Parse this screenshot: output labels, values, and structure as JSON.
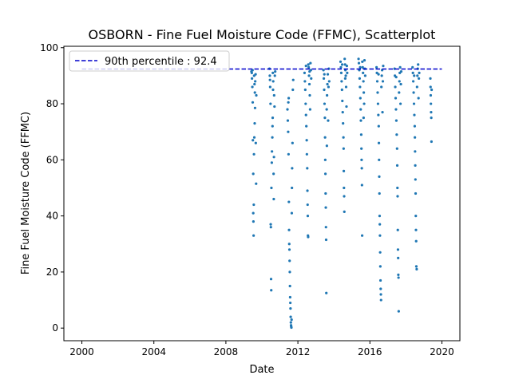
{
  "chart_data": {
    "type": "scatter",
    "title": "OSBORN - Fine Fuel Moisture Code (FFMC), Scatterplot",
    "xlabel": "Date",
    "ylabel": "Fine Fuel Moisture Code (FFMC)",
    "xlim": [
      1999,
      2021
    ],
    "ylim": [
      -4.5,
      100.5
    ],
    "xticks": [
      2000,
      2004,
      2008,
      2012,
      2016,
      2020
    ],
    "yticks": [
      0,
      20,
      40,
      60,
      80,
      100
    ],
    "grid": false,
    "legend": {
      "placement": "top-left",
      "entries": [
        "90th percentile : 92.4"
      ]
    },
    "point_color": "#1f77b4",
    "line_color": "#0000cc",
    "reference_line": {
      "label": "90th percentile : 92.4",
      "value": 92.4,
      "x_start": 2000.0,
      "x_end": 2020.0
    },
    "seasons": [
      {
        "start": 2009.4,
        "end": 2009.7,
        "points": [
          [
            2009.42,
            91.5
          ],
          [
            2009.45,
            89.0
          ],
          [
            2009.47,
            86.0
          ],
          [
            2009.49,
            80.5
          ],
          [
            2009.5,
            67.0
          ],
          [
            2009.52,
            55.0
          ],
          [
            2009.52,
            41.0
          ],
          [
            2009.53,
            38.0
          ],
          [
            2009.54,
            33.0
          ],
          [
            2009.55,
            44.0
          ],
          [
            2009.56,
            62.0
          ],
          [
            2009.58,
            68.0
          ],
          [
            2009.6,
            73.0
          ],
          [
            2009.61,
            84.0
          ],
          [
            2009.63,
            88.0
          ],
          [
            2009.65,
            90.5
          ],
          [
            2009.66,
            66.0
          ],
          [
            2009.68,
            51.5
          ],
          [
            2009.69,
            83.0
          ],
          [
            2009.62,
            78.5
          ],
          [
            2009.59,
            87.0
          ],
          [
            2009.57,
            90.0
          ],
          [
            2009.48,
            92.0
          ],
          [
            2009.44,
            91.0
          ]
        ]
      },
      {
        "start": 2010.4,
        "end": 2010.75,
        "points": [
          [
            2010.42,
            92.5
          ],
          [
            2010.44,
            90.0
          ],
          [
            2010.46,
            86.0
          ],
          [
            2010.48,
            80.0
          ],
          [
            2010.49,
            37.0
          ],
          [
            2010.5,
            36.0
          ],
          [
            2010.51,
            17.5
          ],
          [
            2010.52,
            13.5
          ],
          [
            2010.53,
            50.0
          ],
          [
            2010.55,
            59.0
          ],
          [
            2010.56,
            63.0
          ],
          [
            2010.58,
            68.0
          ],
          [
            2010.59,
            72.0
          ],
          [
            2010.6,
            75.0
          ],
          [
            2010.62,
            85.0
          ],
          [
            2010.63,
            88.0
          ],
          [
            2010.65,
            55.0
          ],
          [
            2010.66,
            46.0
          ],
          [
            2010.68,
            83.0
          ],
          [
            2010.7,
            79.0
          ],
          [
            2010.72,
            90.0
          ],
          [
            2010.74,
            91.5
          ],
          [
            2010.45,
            88.5
          ],
          [
            2010.61,
            91.0
          ],
          [
            2010.67,
            61.0
          ]
        ]
      },
      {
        "start": 2011.4,
        "end": 2011.75,
        "points": [
          [
            2011.42,
            78.0
          ],
          [
            2011.44,
            74.0
          ],
          [
            2011.46,
            70.0
          ],
          [
            2011.48,
            62.0
          ],
          [
            2011.5,
            45.0
          ],
          [
            2011.51,
            35.0
          ],
          [
            2011.52,
            30.0
          ],
          [
            2011.53,
            28.0
          ],
          [
            2011.54,
            24.0
          ],
          [
            2011.55,
            20.0
          ],
          [
            2011.56,
            15.0
          ],
          [
            2011.57,
            11.0
          ],
          [
            2011.58,
            9.0
          ],
          [
            2011.59,
            7.0
          ],
          [
            2011.6,
            4.0
          ],
          [
            2011.61,
            2.0
          ],
          [
            2011.62,
            1.0
          ],
          [
            2011.63,
            0.5
          ],
          [
            2011.64,
            0.2
          ],
          [
            2011.65,
            3.0
          ],
          [
            2011.66,
            41.0
          ],
          [
            2011.68,
            57.0
          ],
          [
            2011.7,
            66.0
          ],
          [
            2011.72,
            85.0
          ],
          [
            2011.74,
            88.5
          ],
          [
            2011.47,
            80.5
          ],
          [
            2011.49,
            82.0
          ],
          [
            2011.67,
            50.0
          ]
        ]
      },
      {
        "start": 2012.35,
        "end": 2012.75,
        "points": [
          [
            2012.37,
            91.0
          ],
          [
            2012.39,
            88.0
          ],
          [
            2012.41,
            85.0
          ],
          [
            2012.43,
            80.0
          ],
          [
            2012.45,
            76.0
          ],
          [
            2012.47,
            72.0
          ],
          [
            2012.49,
            67.0
          ],
          [
            2012.5,
            62.0
          ],
          [
            2012.52,
            57.0
          ],
          [
            2012.53,
            49.0
          ],
          [
            2012.54,
            44.0
          ],
          [
            2012.55,
            40.0
          ],
          [
            2012.56,
            33.0
          ],
          [
            2012.57,
            32.5
          ],
          [
            2012.58,
            94.0
          ],
          [
            2012.6,
            93.0
          ],
          [
            2012.62,
            90.0
          ],
          [
            2012.64,
            87.0
          ],
          [
            2012.66,
            83.0
          ],
          [
            2012.68,
            78.0
          ],
          [
            2012.7,
            94.5
          ],
          [
            2012.72,
            92.0
          ],
          [
            2012.74,
            89.0
          ],
          [
            2012.45,
            93.5
          ],
          [
            2012.65,
            91.5
          ]
        ]
      },
      {
        "start": 2013.4,
        "end": 2013.75,
        "points": [
          [
            2013.42,
            92.0
          ],
          [
            2013.44,
            89.0
          ],
          [
            2013.46,
            85.0
          ],
          [
            2013.48,
            80.0
          ],
          [
            2013.5,
            75.0
          ],
          [
            2013.51,
            68.0
          ],
          [
            2013.52,
            60.0
          ],
          [
            2013.53,
            55.0
          ],
          [
            2013.54,
            48.0
          ],
          [
            2013.55,
            43.0
          ],
          [
            2013.56,
            36.0
          ],
          [
            2013.57,
            31.5
          ],
          [
            2013.58,
            12.5
          ],
          [
            2013.6,
            78.0
          ],
          [
            2013.62,
            83.0
          ],
          [
            2013.64,
            87.0
          ],
          [
            2013.66,
            90.5
          ],
          [
            2013.68,
            74.0
          ],
          [
            2013.7,
            86.0
          ],
          [
            2013.72,
            92.5
          ],
          [
            2013.74,
            88.0
          ],
          [
            2013.47,
            90.5
          ],
          [
            2013.61,
            65.0
          ]
        ]
      },
      {
        "start": 2014.35,
        "end": 2014.75,
        "points": [
          [
            2014.37,
            95.0
          ],
          [
            2014.39,
            93.0
          ],
          [
            2014.41,
            91.0
          ],
          [
            2014.43,
            88.0
          ],
          [
            2014.45,
            85.0
          ],
          [
            2014.47,
            81.0
          ],
          [
            2014.49,
            77.0
          ],
          [
            2014.51,
            73.0
          ],
          [
            2014.53,
            68.0
          ],
          [
            2014.54,
            64.0
          ],
          [
            2014.55,
            56.0
          ],
          [
            2014.56,
            50.0
          ],
          [
            2014.57,
            47.0
          ],
          [
            2014.58,
            41.5
          ],
          [
            2014.6,
            96.0
          ],
          [
            2014.62,
            94.0
          ],
          [
            2014.64,
            92.0
          ],
          [
            2014.66,
            90.0
          ],
          [
            2014.68,
            86.0
          ],
          [
            2014.7,
            79.0
          ],
          [
            2014.72,
            93.5
          ],
          [
            2014.74,
            91.0
          ],
          [
            2014.46,
            94.0
          ],
          [
            2014.63,
            89.0
          ]
        ]
      },
      {
        "start": 2015.35,
        "end": 2015.75,
        "points": [
          [
            2015.37,
            96.0
          ],
          [
            2015.39,
            94.5
          ],
          [
            2015.41,
            92.0
          ],
          [
            2015.43,
            89.0
          ],
          [
            2015.45,
            86.0
          ],
          [
            2015.47,
            82.0
          ],
          [
            2015.49,
            78.0
          ],
          [
            2015.5,
            74.0
          ],
          [
            2015.52,
            69.0
          ],
          [
            2015.53,
            64.0
          ],
          [
            2015.54,
            60.0
          ],
          [
            2015.55,
            57.0
          ],
          [
            2015.56,
            51.0
          ],
          [
            2015.57,
            33.0
          ],
          [
            2015.58,
            95.0
          ],
          [
            2015.6,
            93.0
          ],
          [
            2015.62,
            91.0
          ],
          [
            2015.64,
            88.0
          ],
          [
            2015.66,
            84.0
          ],
          [
            2015.68,
            80.0
          ],
          [
            2015.7,
            95.5
          ],
          [
            2015.72,
            92.5
          ],
          [
            2015.74,
            90.0
          ],
          [
            2015.46,
            93.0
          ],
          [
            2015.65,
            75.0
          ]
        ]
      },
      {
        "start": 2016.35,
        "end": 2016.75,
        "points": [
          [
            2016.37,
            93.0
          ],
          [
            2016.39,
            91.0
          ],
          [
            2016.41,
            88.0
          ],
          [
            2016.43,
            84.0
          ],
          [
            2016.45,
            80.0
          ],
          [
            2016.47,
            76.0
          ],
          [
            2016.49,
            72.0
          ],
          [
            2016.5,
            66.0
          ],
          [
            2016.51,
            60.0
          ],
          [
            2016.52,
            54.0
          ],
          [
            2016.53,
            48.0
          ],
          [
            2016.54,
            40.0
          ],
          [
            2016.55,
            37.0
          ],
          [
            2016.56,
            33.0
          ],
          [
            2016.57,
            27.0
          ],
          [
            2016.58,
            22.0
          ],
          [
            2016.59,
            17.0
          ],
          [
            2016.6,
            14.0
          ],
          [
            2016.61,
            12.0
          ],
          [
            2016.62,
            10.0
          ],
          [
            2016.64,
            86.0
          ],
          [
            2016.66,
            90.0
          ],
          [
            2016.68,
            92.0
          ],
          [
            2016.7,
            77.0
          ],
          [
            2016.72,
            88.0
          ],
          [
            2016.74,
            93.5
          ],
          [
            2016.48,
            90.5
          ]
        ]
      },
      {
        "start": 2017.35,
        "end": 2017.75,
        "points": [
          [
            2017.37,
            92.5
          ],
          [
            2017.39,
            90.0
          ],
          [
            2017.41,
            86.0
          ],
          [
            2017.43,
            82.0
          ],
          [
            2017.45,
            78.0
          ],
          [
            2017.47,
            74.0
          ],
          [
            2017.49,
            69.0
          ],
          [
            2017.51,
            64.0
          ],
          [
            2017.52,
            58.0
          ],
          [
            2017.53,
            50.0
          ],
          [
            2017.54,
            47.0
          ],
          [
            2017.55,
            35.0
          ],
          [
            2017.56,
            28.0
          ],
          [
            2017.57,
            25.0
          ],
          [
            2017.58,
            19.0
          ],
          [
            2017.59,
            18.0
          ],
          [
            2017.6,
            6.0
          ],
          [
            2017.62,
            84.0
          ],
          [
            2017.64,
            88.0
          ],
          [
            2017.66,
            91.0
          ],
          [
            2017.68,
            93.0
          ],
          [
            2017.7,
            80.0
          ],
          [
            2017.72,
            87.0
          ],
          [
            2017.74,
            91.5
          ],
          [
            2017.46,
            89.5
          ]
        ]
      },
      {
        "start": 2018.35,
        "end": 2018.75,
        "points": [
          [
            2018.37,
            93.0
          ],
          [
            2018.39,
            91.0
          ],
          [
            2018.41,
            88.0
          ],
          [
            2018.43,
            84.0
          ],
          [
            2018.45,
            80.0
          ],
          [
            2018.47,
            76.0
          ],
          [
            2018.49,
            72.0
          ],
          [
            2018.5,
            68.0
          ],
          [
            2018.51,
            63.0
          ],
          [
            2018.52,
            58.0
          ],
          [
            2018.53,
            53.0
          ],
          [
            2018.54,
            48.0
          ],
          [
            2018.55,
            40.0
          ],
          [
            2018.56,
            35.0
          ],
          [
            2018.57,
            31.0
          ],
          [
            2018.58,
            22.0
          ],
          [
            2018.6,
            21.0
          ],
          [
            2018.62,
            86.0
          ],
          [
            2018.64,
            90.0
          ],
          [
            2018.66,
            92.5
          ],
          [
            2018.68,
            94.0
          ],
          [
            2018.7,
            82.0
          ],
          [
            2018.72,
            89.0
          ],
          [
            2018.74,
            91.0
          ],
          [
            2018.46,
            90.0
          ]
        ]
      },
      {
        "start": 2019.35,
        "end": 2019.45,
        "points": [
          [
            2019.36,
            89.0
          ],
          [
            2019.37,
            86.0
          ],
          [
            2019.38,
            83.0
          ],
          [
            2019.39,
            80.0
          ],
          [
            2019.4,
            77.0
          ],
          [
            2019.41,
            75.0
          ],
          [
            2019.42,
            66.5
          ],
          [
            2019.43,
            85.0
          ]
        ]
      }
    ]
  }
}
